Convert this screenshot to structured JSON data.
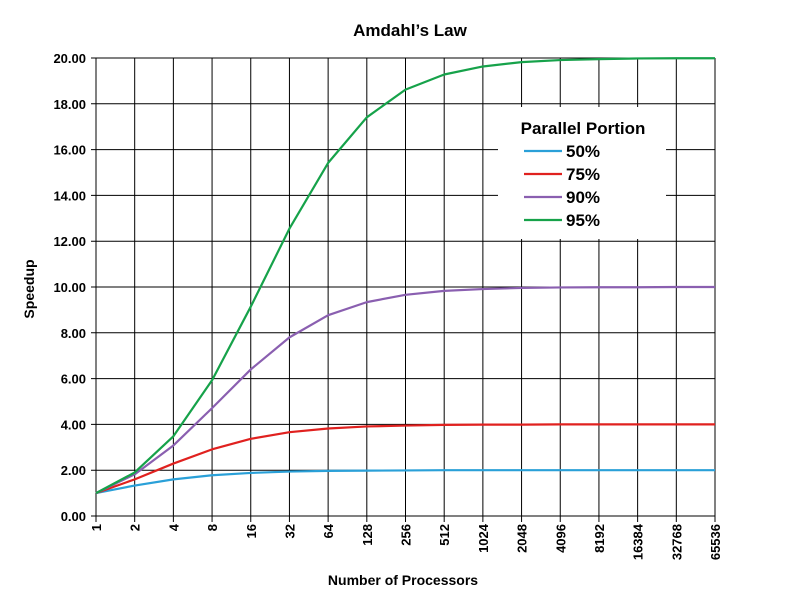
{
  "chart_data": {
    "type": "line",
    "title": "Amdahl’s Law",
    "xlabel": "Number of Processors",
    "ylabel": "Speedup",
    "x": [
      1,
      2,
      4,
      8,
      16,
      32,
      64,
      128,
      256,
      512,
      1024,
      2048,
      4096,
      8192,
      16384,
      32768,
      65536
    ],
    "x_tick_labels": [
      "1",
      "2",
      "4",
      "8",
      "16",
      "32",
      "64",
      "128",
      "256",
      "512",
      "1024",
      "2048",
      "4096",
      "8192",
      "16384",
      "32768",
      "65536"
    ],
    "x_scale": "log2",
    "ylim": [
      0,
      20
    ],
    "y_ticks": [
      0,
      2,
      4,
      6,
      8,
      10,
      12,
      14,
      16,
      18,
      20
    ],
    "y_tick_labels": [
      "0.00",
      "2.00",
      "4.00",
      "6.00",
      "8.00",
      "10.00",
      "12.00",
      "14.00",
      "16.00",
      "18.00",
      "20.00"
    ],
    "grid": true,
    "legend": {
      "title": "Parallel Portion",
      "placement": "top-right"
    },
    "series": [
      {
        "name": "50%",
        "color": "#2aa0d8",
        "values": [
          1.0,
          1.33,
          1.6,
          1.78,
          1.88,
          1.94,
          1.97,
          1.98,
          1.99,
          2.0,
          2.0,
          2.0,
          2.0,
          2.0,
          2.0,
          2.0,
          2.0
        ]
      },
      {
        "name": "75%",
        "color": "#e0211f",
        "values": [
          1.0,
          1.6,
          2.29,
          2.91,
          3.37,
          3.66,
          3.82,
          3.91,
          3.95,
          3.98,
          3.99,
          3.99,
          4.0,
          4.0,
          4.0,
          4.0,
          4.0
        ]
      },
      {
        "name": "90%",
        "color": "#8a5fb0",
        "values": [
          1.0,
          1.82,
          3.08,
          4.71,
          6.4,
          7.8,
          8.77,
          9.34,
          9.66,
          9.83,
          9.91,
          9.96,
          9.98,
          9.99,
          9.99,
          10.0,
          10.0
        ]
      },
      {
        "name": "95%",
        "color": "#16a24a",
        "values": [
          1.0,
          1.9,
          3.48,
          5.93,
          9.14,
          12.55,
          15.42,
          17.41,
          18.62,
          19.28,
          19.63,
          19.82,
          19.91,
          19.95,
          19.98,
          19.99,
          19.99
        ]
      }
    ]
  }
}
